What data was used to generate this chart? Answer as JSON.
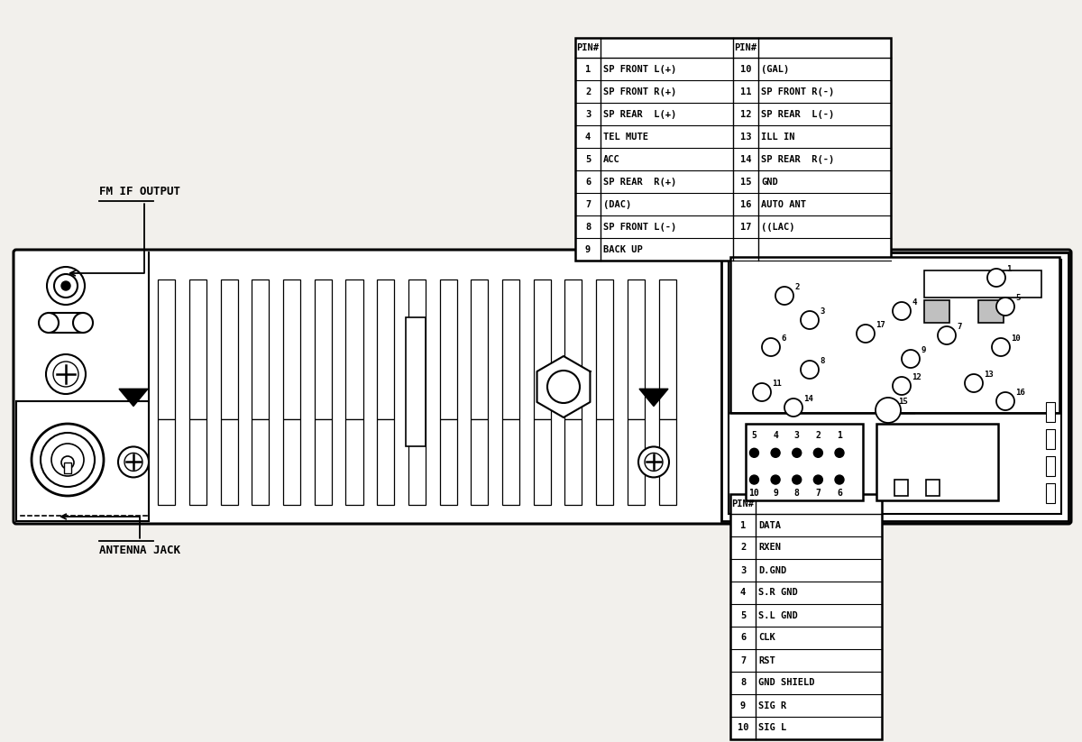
{
  "bg_color": "#f2f0ec",
  "pin_table1_left": [
    [
      "1",
      "SP FRONT L(+)"
    ],
    [
      "2",
      "SP FRONT R(+)"
    ],
    [
      "3",
      "SP REAR  L(+)"
    ],
    [
      "4",
      "TEL MUTE"
    ],
    [
      "5",
      "ACC"
    ],
    [
      "6",
      "SP REAR  R(+)"
    ],
    [
      "7",
      "(DAC)"
    ],
    [
      "8",
      "SP FRONT L(-)"
    ],
    [
      "9",
      "BACK UP"
    ]
  ],
  "pin_table1_right": [
    [
      "10",
      "(GAL)"
    ],
    [
      "11",
      "SP FRONT R(-)"
    ],
    [
      "12",
      "SP REAR  L(-)"
    ],
    [
      "13",
      "ILL IN"
    ],
    [
      "14",
      "SP REAR  R(-)"
    ],
    [
      "15",
      "GND"
    ],
    [
      "16",
      "AUTO ANT"
    ],
    [
      "17",
      "((LAC)"
    ],
    [
      "",
      ""
    ]
  ],
  "pin_table2": [
    [
      "1",
      "DATA"
    ],
    [
      "2",
      "RXEN"
    ],
    [
      "3",
      "D.GND"
    ],
    [
      "4",
      "S.R GND"
    ],
    [
      "5",
      "S.L GND"
    ],
    [
      "6",
      "CLK"
    ],
    [
      "7",
      "RST"
    ],
    [
      "8",
      "GND SHIELD"
    ],
    [
      "9",
      "SIG R"
    ],
    [
      "10",
      "SIG L"
    ]
  ],
  "label_fm_if": "FM IF OUTPUT",
  "label_antenna": "ANTENNA JACK",
  "connector_pins": [
    "1",
    "2",
    "3",
    "4",
    "5",
    "6",
    "7",
    "8",
    "9",
    "10",
    "11",
    "12",
    "13",
    "14",
    "15",
    "16",
    "17"
  ],
  "grid_top": [
    "5",
    "4",
    "3",
    "2",
    "1"
  ],
  "grid_bot": [
    "10",
    "9",
    "8",
    "7",
    "6"
  ]
}
